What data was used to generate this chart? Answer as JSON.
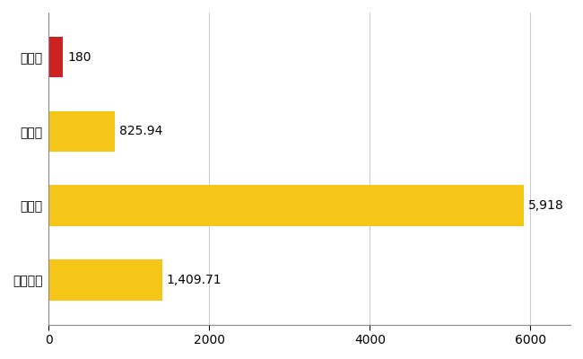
{
  "categories": [
    "軽米町",
    "県平均",
    "県最大",
    "全国平均"
  ],
  "values": [
    180,
    825.94,
    5918,
    1409.71
  ],
  "labels": [
    "180",
    "825.94",
    "5,918",
    "1,409.71"
  ],
  "bar_colors": [
    "#cc2222",
    "#f5c518",
    "#f5c518",
    "#f5c518"
  ],
  "background_color": "#ffffff",
  "xlim": [
    0,
    6500
  ],
  "xticks": [
    0,
    2000,
    4000,
    6000
  ],
  "xtick_labels": [
    "0",
    "2000",
    "4000",
    "6000"
  ],
  "grid_color": "#cccccc",
  "label_fontsize": 10,
  "tick_fontsize": 10,
  "bar_height": 0.55
}
